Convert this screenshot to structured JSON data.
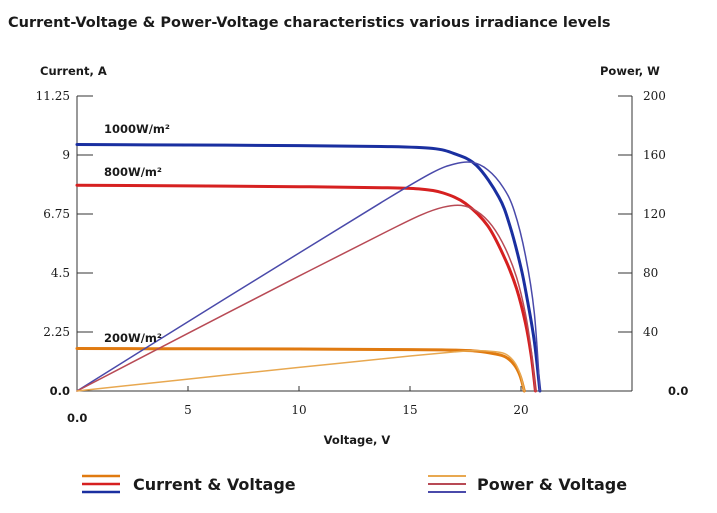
{
  "chart_data": {
    "type": "line",
    "title": "Current-Voltage & Power-Voltage characteristics various irradiance levels",
    "xlabel": "Voltage, V",
    "ylabel_left": "Current, A",
    "ylabel_right": "Power, W",
    "xlim": [
      0,
      25
    ],
    "ylim_left": [
      0,
      11.25
    ],
    "ylim_right": [
      0,
      200
    ],
    "x_ticks": [
      "0.0",
      "5",
      "10",
      "15",
      "20"
    ],
    "y_ticks_left": [
      "0.0",
      "2.25",
      "4.5",
      "6.75",
      "9",
      "11.25"
    ],
    "y_ticks_right": [
      "0.0",
      "40",
      "80",
      "120",
      "160",
      "200"
    ],
    "grid": false,
    "legend": {
      "placement": "bottom",
      "entries": [
        {
          "label": "Current & Voltage",
          "colors": [
            "#e07a10",
            "#d62020",
            "#1a2fa0"
          ]
        },
        {
          "label": "Power & Voltage",
          "colors": [
            "#e8a850",
            "#b84a55",
            "#4a4aaa"
          ]
        }
      ]
    },
    "annotations": [
      "1000W/m²",
      "800W/m²",
      "200W/m²"
    ],
    "series": [
      {
        "axis": "left",
        "color": "#1a2fa0",
        "x": [
          0,
          5,
          10,
          14,
          16,
          17,
          18,
          19,
          19.5,
          20,
          20.3,
          20.6,
          20.85
        ],
        "y": [
          9.4,
          9.38,
          9.36,
          9.32,
          9.25,
          9.05,
          8.6,
          7.4,
          6.3,
          4.7,
          3.4,
          1.9,
          0
        ]
      },
      {
        "axis": "left",
        "color": "#d62020",
        "x": [
          0,
          5,
          10,
          14,
          15.5,
          16.5,
          17.5,
          18.5,
          19.3,
          19.8,
          20.2,
          20.45,
          20.65
        ],
        "y": [
          7.85,
          7.82,
          7.79,
          7.75,
          7.7,
          7.55,
          7.15,
          6.3,
          5.0,
          3.9,
          2.6,
          1.4,
          0
        ]
      },
      {
        "axis": "left",
        "color": "#e07a10",
        "x": [
          0,
          5,
          10,
          15,
          17,
          18,
          18.8,
          19.3,
          19.7,
          19.95,
          20.15
        ],
        "y": [
          1.62,
          1.61,
          1.6,
          1.58,
          1.56,
          1.52,
          1.42,
          1.3,
          1.0,
          0.6,
          0
        ]
      },
      {
        "axis": "right",
        "color": "#4a4aaa",
        "x": [
          0,
          5,
          10,
          14,
          16,
          17,
          17.8,
          18.5,
          19.2,
          19.7,
          20.2,
          20.6,
          20.85
        ],
        "y": [
          0,
          47,
          93.5,
          130.5,
          148,
          153.9,
          155,
          150,
          138,
          122,
          92,
          53,
          0
        ]
      },
      {
        "axis": "right",
        "color": "#b84a55",
        "x": [
          0,
          5,
          10,
          14,
          15.5,
          16.5,
          17.3,
          18,
          18.7,
          19.3,
          19.8,
          20.2,
          20.45,
          20.65
        ],
        "y": [
          0,
          39.1,
          77.9,
          108.5,
          119.4,
          124.6,
          125.8,
          122,
          112,
          96.5,
          77,
          52.5,
          28.6,
          0
        ]
      },
      {
        "axis": "right",
        "color": "#e8a850",
        "x": [
          0,
          5,
          10,
          15,
          17,
          18,
          18.8,
          19.3,
          19.7,
          19.95,
          20.15
        ],
        "y": [
          0,
          8.05,
          16,
          23.7,
          26.5,
          27.4,
          26.7,
          25.1,
          19.7,
          12,
          0
        ]
      }
    ]
  }
}
